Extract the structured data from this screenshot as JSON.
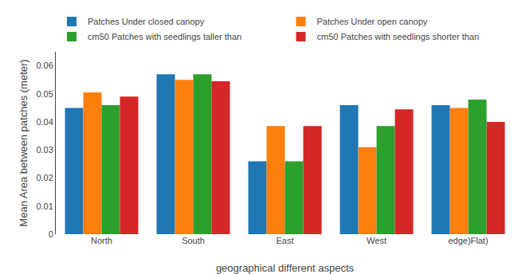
{
  "chart_data": {
    "type": "bar",
    "xlabel": "geographical different aspects",
    "ylabel": "Mean Area between patches (meter)",
    "categories": [
      "North",
      "South",
      "East",
      "West",
      "edge)Flat)"
    ],
    "series": [
      {
        "name": "Patches Under closed canopy",
        "values": [
          0.045,
          0.057,
          0.026,
          0.046,
          0.046
        ]
      },
      {
        "name": "Patches Under open canopy",
        "values": [
          0.0505,
          0.055,
          0.0385,
          0.031,
          0.045
        ]
      },
      {
        "name": "cm50 Patches with seedlings taller than",
        "values": [
          0.046,
          0.057,
          0.026,
          0.0385,
          0.048
        ]
      },
      {
        "name": "cm50 Patches with seedlings shorter than",
        "values": [
          0.049,
          0.0545,
          0.0385,
          0.0445,
          0.04
        ]
      }
    ],
    "ylim": [
      0,
      0.065
    ],
    "yticks": [
      0,
      0.01,
      0.02,
      0.03,
      0.04,
      0.05,
      0.06
    ],
    "grid": false,
    "legend": "top"
  }
}
